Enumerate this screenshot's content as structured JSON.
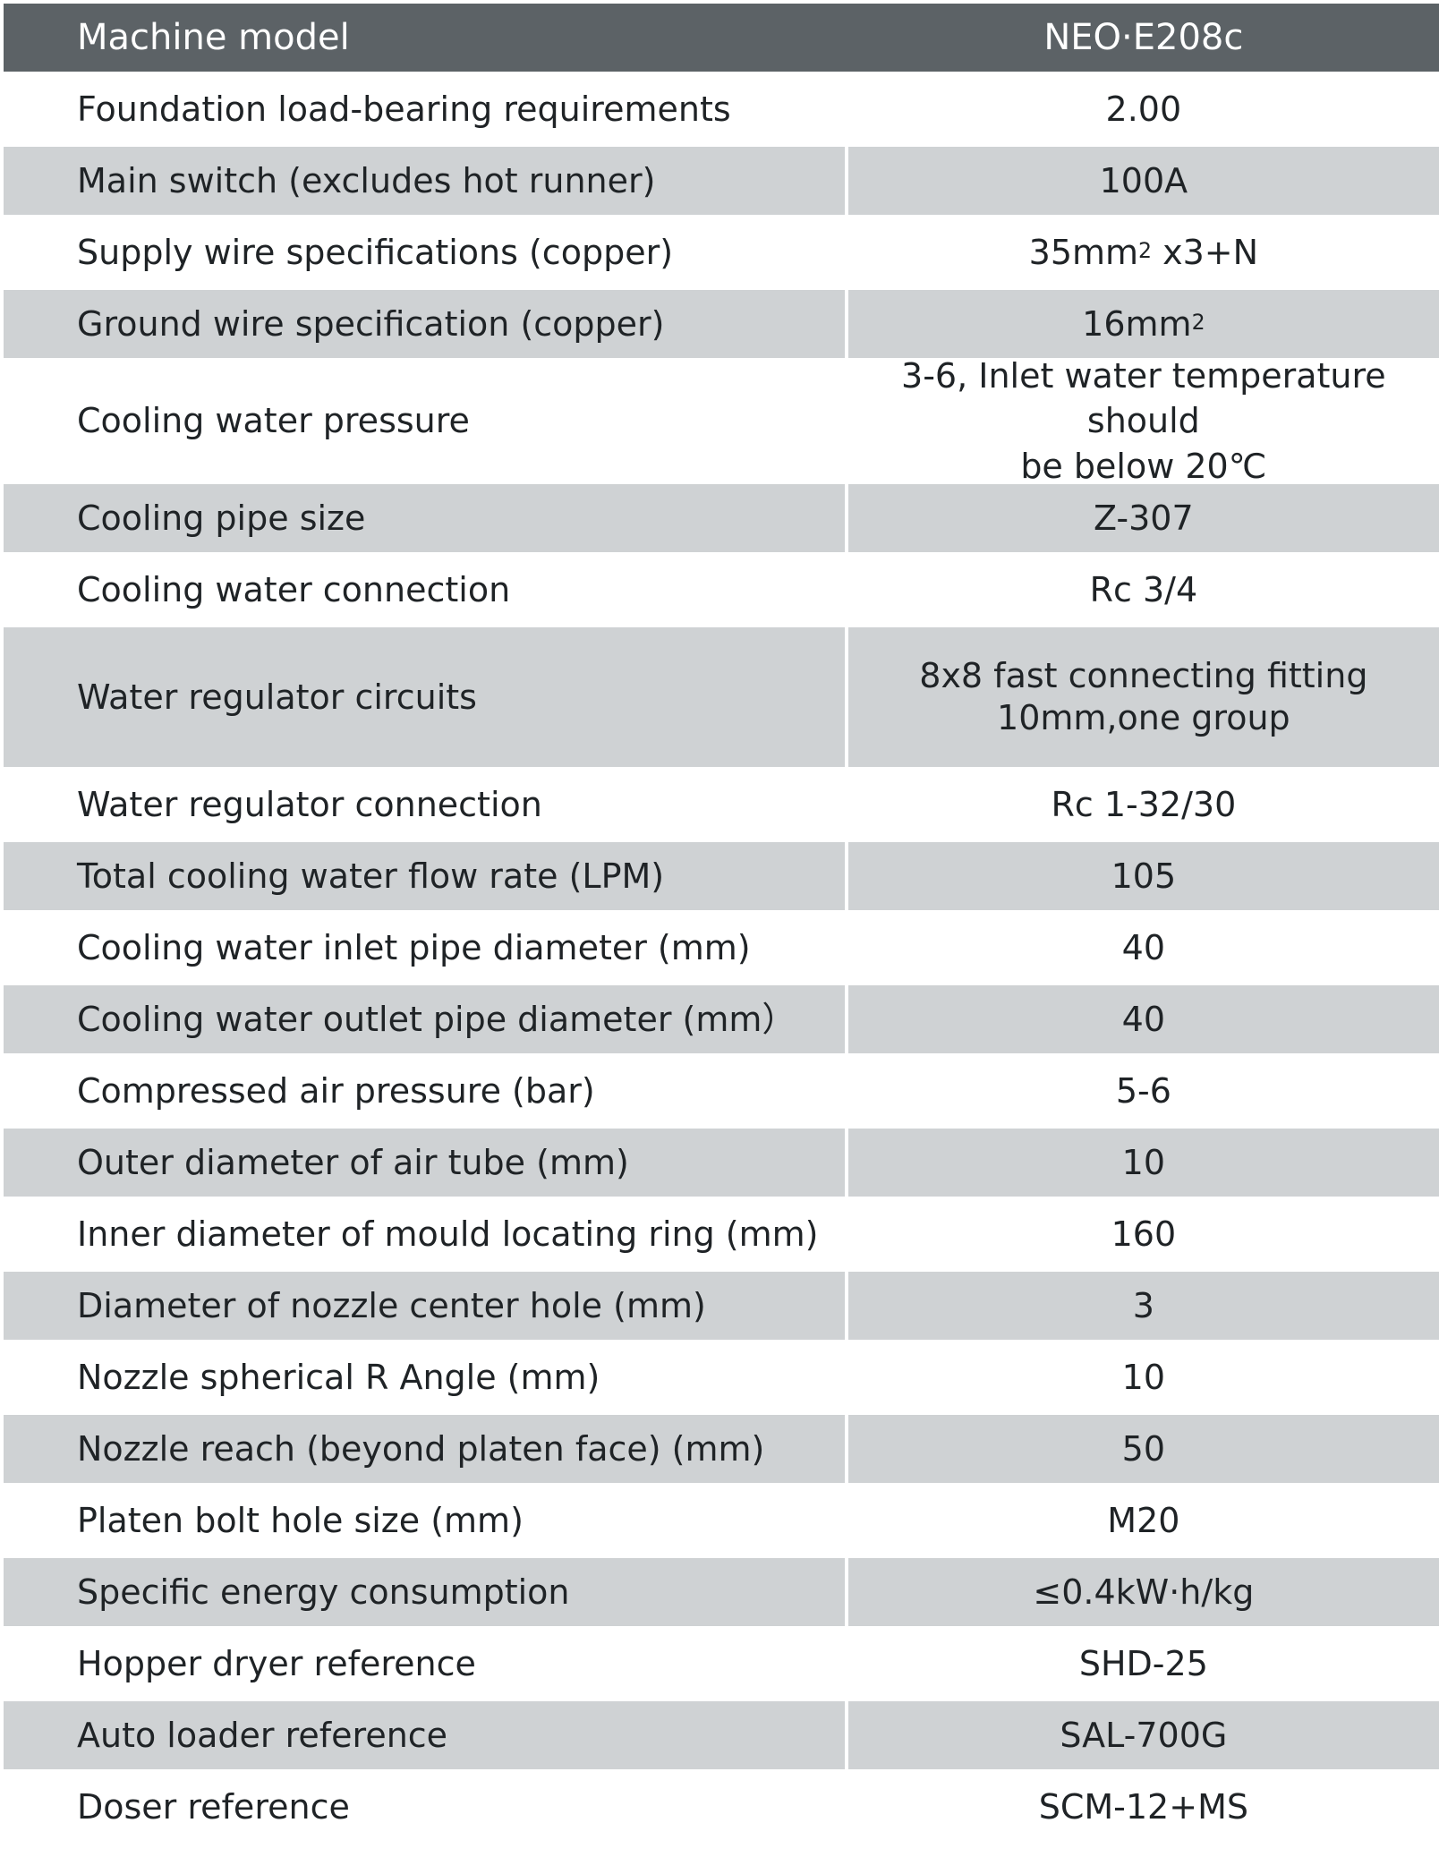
{
  "header": {
    "label": "Machine model",
    "value": "NEO·E208c"
  },
  "rows": [
    {
      "label": "Foundation load-bearing requirements",
      "value": "2.00"
    },
    {
      "label": "Main switch (excludes hot runner)",
      "value": "100A"
    },
    {
      "label": "Supply wire specifications (copper)",
      "value_main": "35mm",
      "value_sup": "2",
      "value_tail": " x3+N"
    },
    {
      "label": "Ground wire specification (copper)",
      "value_main": "16mm",
      "value_sup": "2"
    },
    {
      "label": "Cooling water pressure",
      "value_line1": "3-6, Inlet water temperature should",
      "value_line2": "be below 20℃"
    },
    {
      "label": "Cooling pipe size",
      "value": "Z-307"
    },
    {
      "label": "Cooling water connection",
      "value": "Rc 3/4"
    },
    {
      "label": "Water regulator circuits",
      "value_line1": "8x8 fast connecting fitting",
      "value_line2": "10mm,one group"
    },
    {
      "label": "Water regulator connection",
      "value": "Rc 1-32/30"
    },
    {
      "label": "Total cooling water flow rate (LPM)",
      "value": "105"
    },
    {
      "label": "Cooling water inlet pipe diameter (mm)",
      "value": "40"
    },
    {
      "label": "Cooling water outlet pipe diameter (mm）",
      "value": "40"
    },
    {
      "label": "Compressed air pressure (bar)",
      "value": "5-6"
    },
    {
      "label": "Outer diameter of air tube (mm)",
      "value": "10"
    },
    {
      "label": "Inner diameter of mould locating ring (mm)",
      "value": "160"
    },
    {
      "label": "Diameter of nozzle center hole (mm)",
      "value": "3"
    },
    {
      "label": "Nozzle spherical R Angle (mm)",
      "value": "10"
    },
    {
      "label": "Nozzle reach (beyond platen face) (mm)",
      "value": "50"
    },
    {
      "label": "Platen bolt hole size (mm)",
      "value": "M20"
    },
    {
      "label": "Specific energy consumption",
      "value": "≤0.4kW·h/kg"
    },
    {
      "label": "Hopper dryer reference",
      "value": "SHD-25"
    },
    {
      "label": "Auto loader reference",
      "value": "SAL-700G"
    },
    {
      "label": "Doser reference",
      "value": "SCM-12+MS"
    }
  ]
}
